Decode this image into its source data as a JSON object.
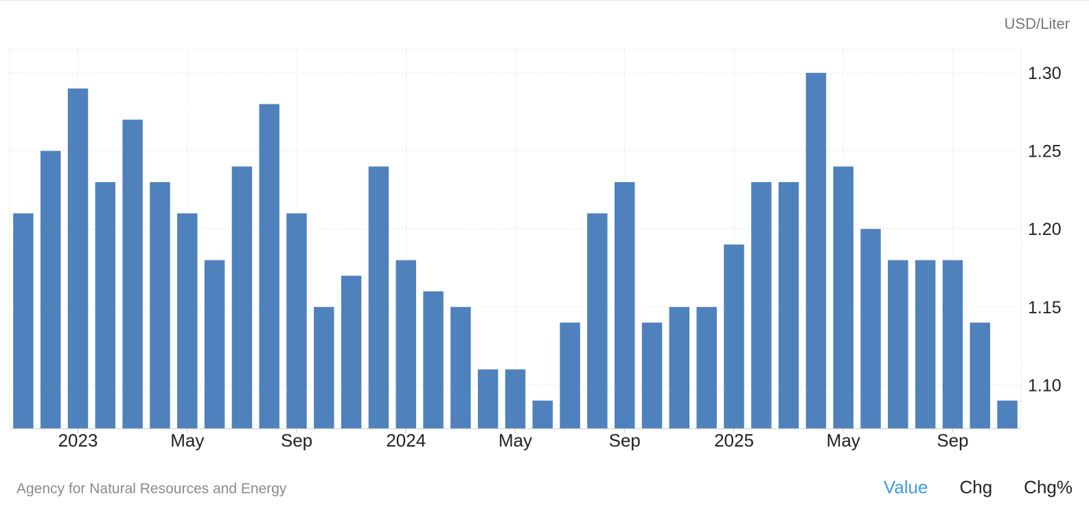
{
  "unit_label": "USD/Liter",
  "source": "Agency for Natural Resources and Energy",
  "tabs": [
    {
      "label": "Value",
      "active": true
    },
    {
      "label": "Chg",
      "active": false
    },
    {
      "label": "Chg%",
      "active": false
    }
  ],
  "colors": {
    "bar": "#4f81bd",
    "grid": "#e6e6e6",
    "active_tab": "#3d9ae8"
  },
  "chart_data": {
    "type": "bar",
    "categories": [
      "2023-01",
      "2023-02",
      "2023-03",
      "2023-04",
      "2023-05",
      "2023-06",
      "2023-07",
      "2023-08",
      "2023-09",
      "2023-10",
      "2023-11",
      "2023-12",
      "2024-01",
      "2024-02",
      "2024-03",
      "2024-04",
      "2024-05",
      "2024-06",
      "2024-07",
      "2024-08",
      "2024-09",
      "2024-10",
      "2024-11",
      "2024-12",
      "2025-01",
      "2025-02",
      "2025-03",
      "2025-04",
      "2025-05",
      "2025-06",
      "2025-07",
      "2025-08",
      "2025-09",
      "2025-10",
      "2025-11",
      "2025-12",
      "2026-01"
    ],
    "values": [
      1.21,
      1.25,
      1.29,
      1.23,
      1.27,
      1.23,
      1.21,
      1.18,
      1.24,
      1.28,
      1.21,
      1.15,
      1.17,
      1.24,
      1.18,
      1.16,
      1.15,
      1.11,
      1.11,
      1.09,
      1.14,
      1.21,
      1.23,
      1.14,
      1.15,
      1.15,
      1.19,
      1.23,
      1.23,
      1.3,
      1.24,
      1.2,
      1.18,
      1.18,
      1.18,
      1.14,
      1.09
    ],
    "x_ticks": [
      {
        "label": "2023",
        "category": "2023-03"
      },
      {
        "label": "May",
        "category": "2023-07"
      },
      {
        "label": "Sep",
        "category": "2023-11"
      },
      {
        "label": "2024",
        "category": "2024-03"
      },
      {
        "label": "May",
        "category": "2024-07"
      },
      {
        "label": "Sep",
        "category": "2024-11"
      },
      {
        "label": "2025",
        "category": "2025-03"
      },
      {
        "label": "May",
        "category": "2025-07"
      },
      {
        "label": "Sep",
        "category": "2025-11"
      }
    ],
    "y_ticks": [
      1.1,
      1.15,
      1.2,
      1.25,
      1.3
    ],
    "ylim": [
      1.072,
      1.315
    ],
    "ylabel": "USD/Liter",
    "grid": true,
    "y_axis_side": "right",
    "legend": "none"
  }
}
